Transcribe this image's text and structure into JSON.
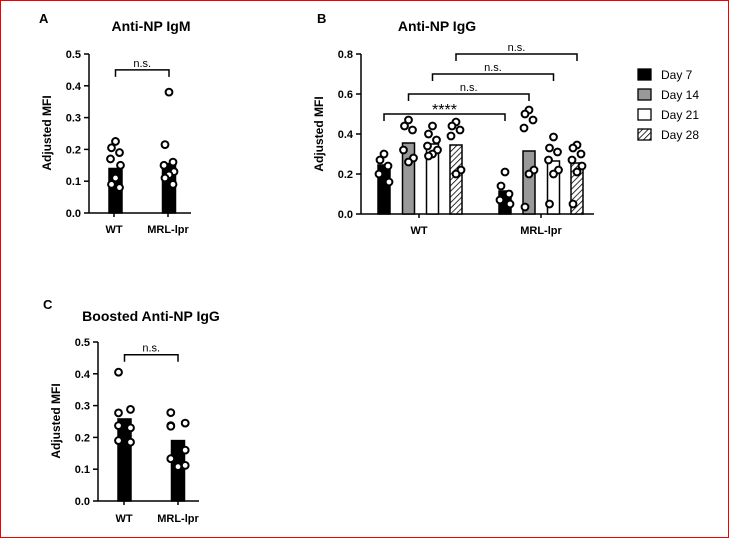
{
  "colors": {
    "day7": "#000000",
    "day14": "#999999",
    "day21": "#ffffff",
    "day28": "hatch",
    "border": "#ee0000"
  },
  "chart_data": [
    {
      "panel": "A",
      "type": "bar",
      "title": "Anti-NP IgM",
      "ylabel": "Adjusted MFI",
      "ylim": [
        0,
        0.5
      ],
      "yticks": [
        "0.0",
        "0.1",
        "0.2",
        "0.3",
        "0.4",
        "0.5"
      ],
      "categories": [
        "WT",
        "MRL-lpr"
      ],
      "series": [
        {
          "name": "",
          "bars": [
            0.14,
            0.155
          ],
          "points": [
            [
              0.225,
              0.205,
              0.19,
              0.17,
              0.15,
              0.11,
              0.09,
              0.08
            ],
            [
              0.38,
              0.215,
              0.16,
              0.15,
              0.13,
              0.12,
              0.11,
              0.09
            ]
          ]
        }
      ],
      "annotations": [
        {
          "label": "n.s.",
          "from": "WT",
          "to": "MRL-lpr",
          "y": 0.45
        }
      ]
    },
    {
      "panel": "B",
      "type": "bar",
      "title": "Anti-NP IgG",
      "ylabel": "Adjusted MFI",
      "ylim": [
        0,
        0.8
      ],
      "yticks": [
        "0.0",
        "0.2",
        "0.4",
        "0.6",
        "0.8"
      ],
      "categories": [
        "WT",
        "MRL-lpr"
      ],
      "legend": [
        "Day 7",
        "Day 14",
        "Day 21",
        "Day 28"
      ],
      "legend_position": "right",
      "series": [
        {
          "name": "Day 7",
          "bars": [
            0.245,
            0.115
          ],
          "points": [
            [
              0.3,
              0.27,
              0.24,
              0.2,
              0.16
            ],
            [
              0.21,
              0.14,
              0.1,
              0.07,
              0.05
            ]
          ]
        },
        {
          "name": "Day 14",
          "bars": [
            0.355,
            0.315
          ],
          "points": [
            [
              0.47,
              0.44,
              0.42,
              0.32,
              0.28,
              0.26
            ],
            [
              0.52,
              0.5,
              0.47,
              0.43,
              0.22,
              0.2,
              0.035
            ]
          ]
        },
        {
          "name": "Day 21",
          "bars": [
            0.35,
            0.265
          ],
          "points": [
            [
              0.44,
              0.4,
              0.37,
              0.34,
              0.32,
              0.3,
              0.29
            ],
            [
              0.385,
              0.33,
              0.31,
              0.27,
              0.22,
              0.2,
              0.05
            ]
          ]
        },
        {
          "name": "Day 28",
          "bars": [
            0.345,
            0.255
          ],
          "points": [
            [
              0.46,
              0.44,
              0.42,
              0.39,
              0.22,
              0.2
            ],
            [
              0.345,
              0.33,
              0.3,
              0.27,
              0.24,
              0.21,
              0.05
            ]
          ]
        }
      ],
      "annotations": [
        {
          "label": "****",
          "series": "Day 7",
          "y": 0.5
        },
        {
          "label": "n.s.",
          "series": "Day 14",
          "y": 0.6
        },
        {
          "label": "n.s.",
          "series": "Day 21",
          "y": 0.7
        },
        {
          "label": "n.s.",
          "series": "Day 28",
          "y": 0.8
        }
      ]
    },
    {
      "panel": "C",
      "type": "bar",
      "title": "Boosted Anti-NP IgG",
      "ylabel": "Adjusted MFI",
      "ylim": [
        0,
        0.5
      ],
      "yticks": [
        "0.0",
        "0.1",
        "0.2",
        "0.3",
        "0.4",
        "0.5"
      ],
      "categories": [
        "WT",
        "MRL-lpr"
      ],
      "series": [
        {
          "name": "",
          "bars": [
            0.258,
            0.19
          ],
          "points": [
            [
              0.405,
              0.288,
              0.277,
              0.237,
              0.23,
              0.19,
              0.185
            ],
            [
              0.278,
              0.245,
              0.237,
              0.235,
              0.16,
              0.133,
              0.112,
              0.108
            ]
          ]
        }
      ],
      "annotations": [
        {
          "label": "n.s.",
          "from": "WT",
          "to": "MRL-lpr",
          "y": 0.46
        }
      ]
    }
  ]
}
